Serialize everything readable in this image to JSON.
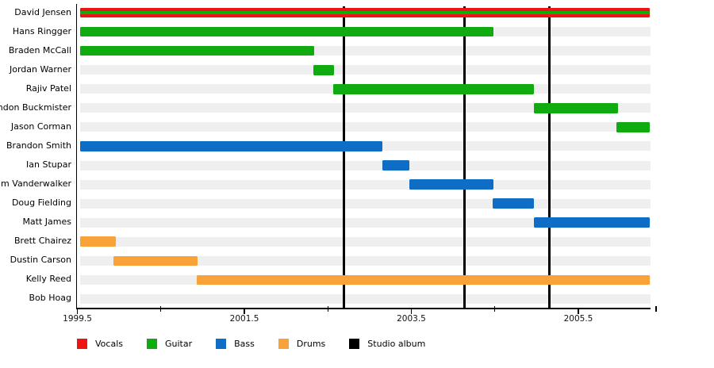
{
  "chart_data": {
    "type": "gantt-timeline",
    "title": "",
    "x_axis": {
      "min": 1999.49,
      "max": 2006.36,
      "major_ticks": [
        1999.5,
        2001.5,
        2003.5,
        2005.5
      ],
      "major_tick_labels": [
        "1999.5",
        "2001.5",
        "2003.5",
        "2005.5"
      ],
      "minor_ticks": [
        2000.5,
        2002.5,
        2004.5,
        2006.43
      ],
      "grid": false
    },
    "members": [
      {
        "name": "David Jensen",
        "segments": [
          {
            "role": "vocals",
            "start": 1999.53,
            "end": 2006.36
          },
          {
            "role": "guitar",
            "start": 1999.53,
            "end": 2006.36,
            "overlay": true
          }
        ]
      },
      {
        "name": "Hans Ringger",
        "segments": [
          {
            "role": "guitar",
            "start": 1999.53,
            "end": 2004.48
          }
        ]
      },
      {
        "name": "Braden McCall",
        "segments": [
          {
            "role": "guitar",
            "start": 1999.53,
            "end": 2002.34
          }
        ]
      },
      {
        "name": "Jordan Warner",
        "segments": [
          {
            "role": "guitar",
            "start": 2002.33,
            "end": 2002.57
          }
        ]
      },
      {
        "name": "Rajiv Patel",
        "segments": [
          {
            "role": "guitar",
            "start": 2002.56,
            "end": 2004.97
          }
        ]
      },
      {
        "name": "Brandon Buckmister",
        "segments": [
          {
            "role": "guitar",
            "start": 2004.97,
            "end": 2005.98
          }
        ]
      },
      {
        "name": "Jason Corman",
        "segments": [
          {
            "role": "guitar",
            "start": 2005.96,
            "end": 2006.36
          }
        ]
      },
      {
        "name": "Brandon Smith",
        "segments": [
          {
            "role": "bass",
            "start": 1999.53,
            "end": 2003.15
          }
        ]
      },
      {
        "name": "Ian Stupar",
        "segments": [
          {
            "role": "bass",
            "start": 2003.15,
            "end": 2003.48
          }
        ]
      },
      {
        "name": "Tim Vanderwalker",
        "segments": [
          {
            "role": "bass",
            "start": 2003.48,
            "end": 2004.48
          }
        ]
      },
      {
        "name": "Doug Fielding",
        "segments": [
          {
            "role": "bass",
            "start": 2004.47,
            "end": 2004.97
          }
        ]
      },
      {
        "name": "Matt James",
        "segments": [
          {
            "role": "bass",
            "start": 2004.97,
            "end": 2006.36
          }
        ]
      },
      {
        "name": "Brett Chairez",
        "segments": [
          {
            "role": "drums",
            "start": 1999.53,
            "end": 1999.96
          }
        ]
      },
      {
        "name": "Dustin Carson",
        "segments": [
          {
            "role": "drums",
            "start": 1999.93,
            "end": 2000.94
          }
        ]
      },
      {
        "name": "Kelly Reed",
        "segments": [
          {
            "role": "drums",
            "start": 2000.93,
            "end": 2006.36
          }
        ]
      },
      {
        "name": "Bob Hoag",
        "segments": []
      }
    ],
    "album_lines": [
      2002.69,
      2004.14,
      2005.15
    ],
    "legend": [
      {
        "label": "Vocals",
        "color_key": "vocals"
      },
      {
        "label": "Guitar",
        "color_key": "guitar"
      },
      {
        "label": "Bass",
        "color_key": "bass"
      },
      {
        "label": "Drums",
        "color_key": "drums"
      },
      {
        "label": "Studio album",
        "color_key": "album"
      }
    ],
    "legend_position": "bottom-left",
    "colors": {
      "vocals": "#ee1411",
      "guitar": "#10ab10",
      "bass": "#0e6ec6",
      "drums": "#f9a23a",
      "album": "#000000",
      "row_track": "#efefef",
      "axis": "#000000"
    }
  }
}
